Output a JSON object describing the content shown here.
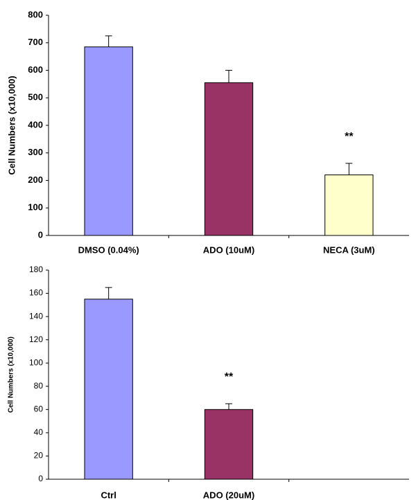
{
  "chart_data": [
    {
      "type": "bar",
      "y_label": "Cell Numbers (x10,000)",
      "categories": [
        "DMSO (0.04%)",
        "ADO (10uM)",
        "NECA (3uM)"
      ],
      "values": [
        685,
        555,
        220
      ],
      "errors": [
        40,
        45,
        42
      ],
      "colors": [
        "#9999ff",
        "#993366",
        "#ffffcc"
      ],
      "annotations": [
        null,
        null,
        "**"
      ],
      "ylim": [
        0,
        800
      ],
      "yticks": [
        0,
        100,
        200,
        300,
        400,
        500,
        600,
        700,
        800
      ]
    },
    {
      "type": "bar",
      "y_label": "Cell Numbers (x10,000)",
      "categories": [
        "Ctrl",
        "ADO (20uM)",
        null
      ],
      "values": [
        155,
        60,
        null
      ],
      "errors": [
        10,
        5,
        null
      ],
      "colors": [
        "#9999ff",
        "#993366",
        null
      ],
      "annotations": [
        null,
        "**",
        null
      ],
      "ylim": [
        0,
        180
      ],
      "yticks": [
        0,
        20,
        40,
        60,
        80,
        100,
        120,
        140,
        160,
        180
      ]
    }
  ]
}
